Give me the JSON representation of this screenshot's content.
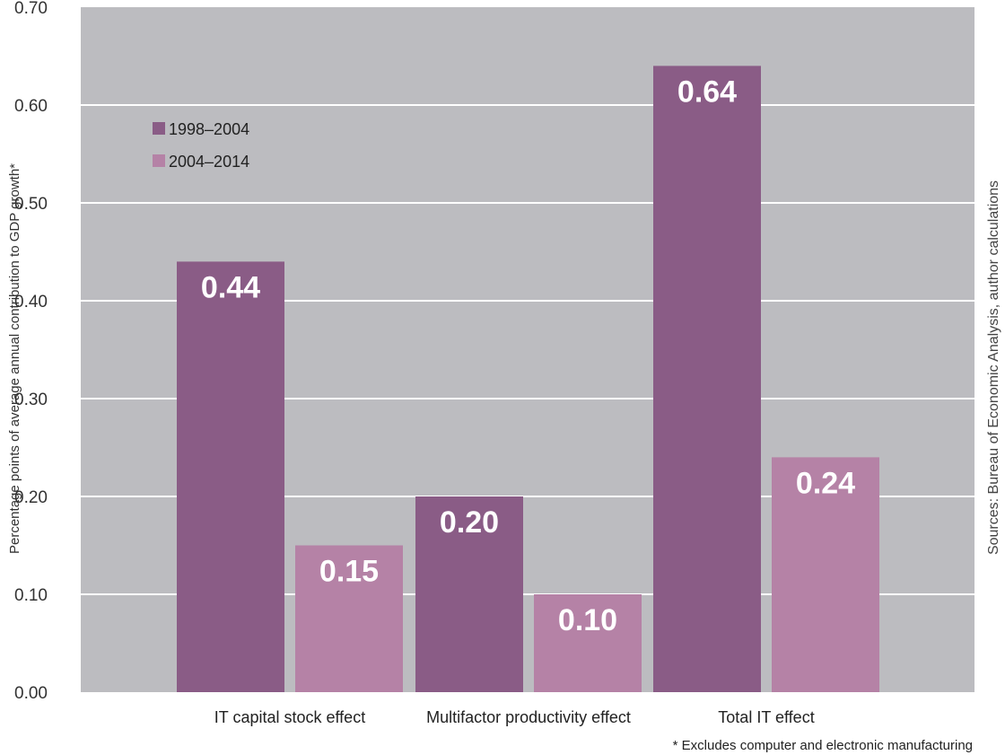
{
  "chart_data": {
    "type": "bar",
    "categories": [
      "IT capital stock effect",
      "Multifactor productivity effect",
      "Total IT effect"
    ],
    "series": [
      {
        "name": "1998–2004",
        "values": [
          0.44,
          0.2,
          0.64
        ],
        "labels": [
          "0.44",
          "0.20",
          "0.64"
        ],
        "color": "#8a5c86"
      },
      {
        "name": "2004–2014",
        "values": [
          0.15,
          0.1,
          0.24
        ],
        "labels": [
          "0.15",
          "0.10",
          "0.24"
        ],
        "color": "#b582a6"
      }
    ],
    "ylabel": "Percentage points of average annual contribution to GDP growth*",
    "ylim": [
      0,
      0.7
    ],
    "yticks": [
      0.0,
      0.1,
      0.2,
      0.3,
      0.4,
      0.5,
      0.6,
      0.7
    ],
    "ytick_labels": [
      "0.00",
      "0.10",
      "0.20",
      "0.30",
      "0.40",
      "0.50",
      "0.60",
      "0.70"
    ],
    "grid": true,
    "legend_position": "top-left",
    "source": "Sources: Bureau of Economic Analysis, author calculations",
    "footnote": "* Excludes computer and electronic manufacturing",
    "colors": {
      "plot_background": "#bcbcc0",
      "gridline": "#ffffff"
    }
  }
}
